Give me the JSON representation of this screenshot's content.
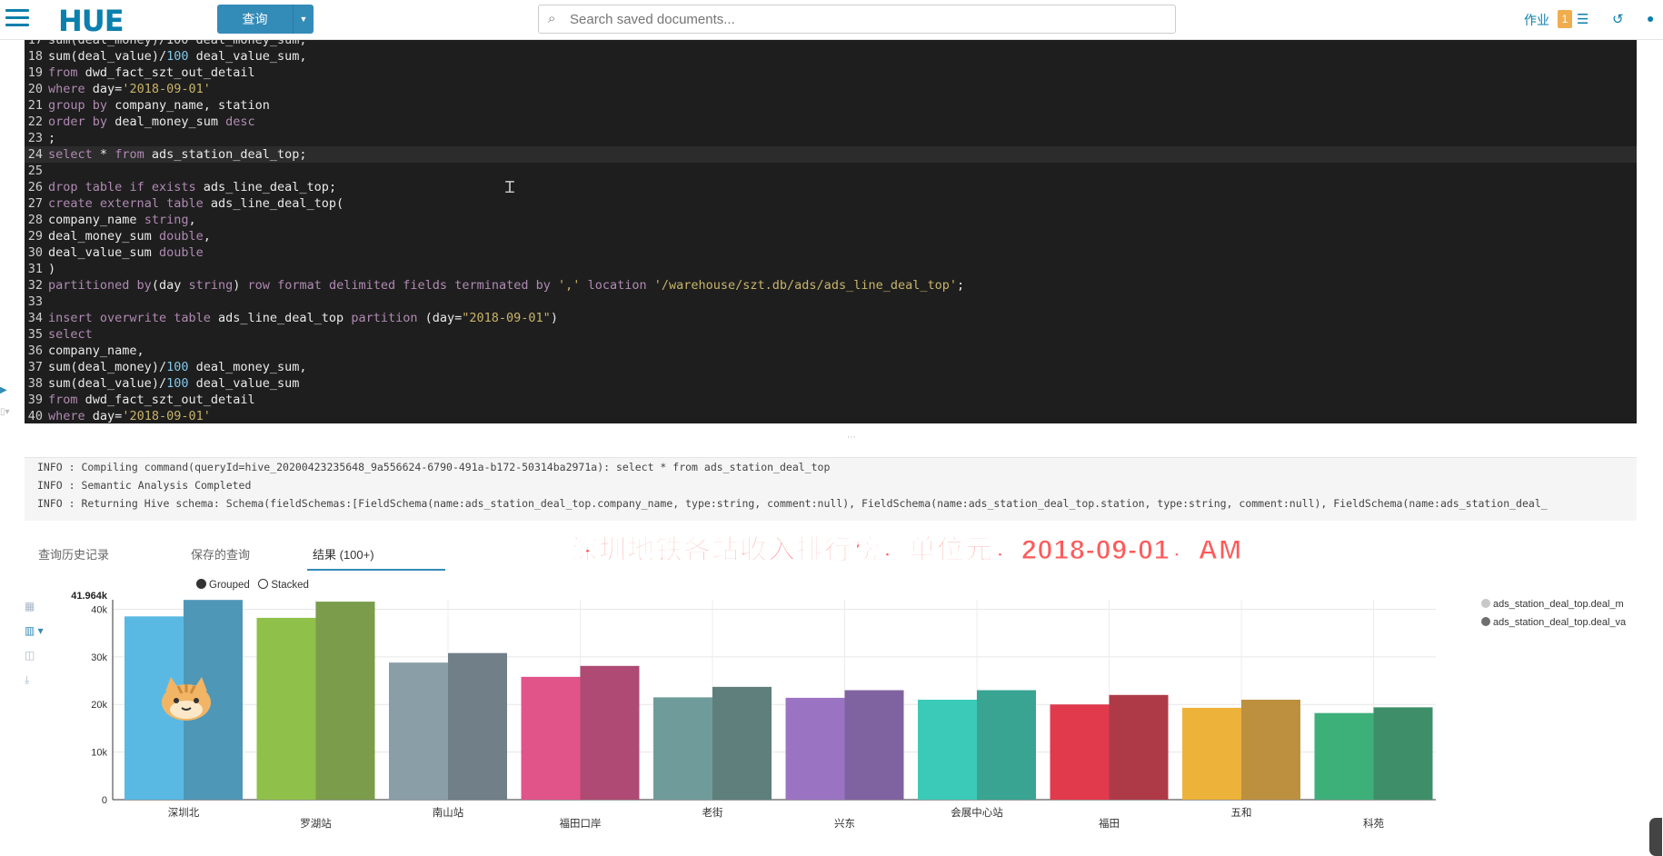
{
  "app": {
    "logo": "HUE",
    "query_button": "查询",
    "search_placeholder": "Search saved documents...",
    "jobs_label": "作业",
    "jobs_count": "1"
  },
  "editor": {
    "lines": [
      {
        "n": "18",
        "text": "sum(deal_value)/100 deal_value_sum,"
      },
      {
        "n": "19",
        "text": "from dwd_fact_szt_out_detail"
      },
      {
        "n": "20",
        "text": "where day='2018-09-01'"
      },
      {
        "n": "21",
        "text": "group by company_name, station"
      },
      {
        "n": "22",
        "text": "order by deal_money_sum desc"
      },
      {
        "n": "23",
        "text": ";"
      },
      {
        "n": "24",
        "text": "select * from ads_station_deal_top;"
      },
      {
        "n": "25",
        "text": ""
      },
      {
        "n": "26",
        "text": "drop table if exists ads_line_deal_top;"
      },
      {
        "n": "27",
        "text": "create external table ads_line_deal_top("
      },
      {
        "n": "28",
        "text": "company_name string,"
      },
      {
        "n": "29",
        "text": "deal_money_sum double,"
      },
      {
        "n": "30",
        "text": "deal_value_sum double"
      },
      {
        "n": "31",
        "text": ")"
      },
      {
        "n": "32",
        "text": "partitioned by(day string) row format delimited fields terminated by ',' location '/warehouse/szt.db/ads/ads_line_deal_top';"
      },
      {
        "n": "33",
        "text": ""
      },
      {
        "n": "34",
        "text": "insert overwrite table ads_line_deal_top partition (day=\"2018-09-01\")"
      },
      {
        "n": "35",
        "text": "select"
      },
      {
        "n": "36",
        "text": "company_name,"
      },
      {
        "n": "37",
        "text": "sum(deal_money)/100 deal_money_sum,"
      },
      {
        "n": "38",
        "text": "sum(deal_value)/100 deal_value_sum"
      },
      {
        "n": "39",
        "text": "from dwd_fact_szt_out_detail"
      },
      {
        "n": "40",
        "text": "where day='2018-09-01'"
      }
    ],
    "top_partial": "sum(deal_money)/100 deal_money_sum,"
  },
  "logs": [
    "INFO  : Compiling command(queryId=hive_20200423235648_9a556624-6790-491a-b172-50314ba2971a): select * from ads_station_deal_top",
    "INFO  : Semantic Analysis Completed",
    "INFO  : Returning Hive schema: Schema(fieldSchemas:[FieldSchema(name:ads_station_deal_top.company_name, type:string, comment:null), FieldSchema(name:ads_station_deal_top.station, type:string, comment:null), FieldSchema(name:ads_station_deal_"
  ],
  "tabs": {
    "history": "查询历史记录",
    "saved": "保存的查询",
    "results": "结果 (100+)"
  },
  "overlay_title": "深圳地铁各站收入排行榜，单位元，2018-09-01，AM",
  "chart_controls": {
    "grouped": "Grouped",
    "stacked": "Stacked"
  },
  "chart_data": {
    "type": "bar",
    "categories": [
      "深圳北",
      "罗湖站",
      "南山站",
      "福田口岸",
      "老街",
      "兴东",
      "会展中心站",
      "福田",
      "五和",
      "科苑"
    ],
    "series": [
      {
        "name": "ads_station_deal_top.deal_m",
        "values": [
          38500,
          38200,
          28800,
          25800,
          21500,
          21400,
          21000,
          20000,
          19300,
          18200
        ]
      },
      {
        "name": "ads_station_deal_top.deal_va",
        "values": [
          41964,
          41600,
          30800,
          28100,
          23700,
          23000,
          23000,
          22000,
          21000,
          19400
        ]
      }
    ],
    "y_ticks": [
      "0",
      "10k",
      "20k",
      "30k",
      "40k"
    ],
    "ylim": [
      0,
      42000
    ],
    "max_label": "41.964k",
    "colors": [
      [
        "#5ab9e3",
        "#4f97b7"
      ],
      [
        "#8ec04a",
        "#7a9c4b"
      ],
      [
        "#8a9ea8",
        "#707f88"
      ],
      [
        "#e0548a",
        "#ae4a73"
      ],
      [
        "#6f9c9a",
        "#5e7f7c"
      ],
      [
        "#9b73c3",
        "#7f63a0"
      ],
      [
        "#3ccab8",
        "#3aa493"
      ],
      [
        "#e03a4c",
        "#ae3a48"
      ],
      [
        "#edb23a",
        "#bd9040"
      ],
      [
        "#3db07a",
        "#3e8f69"
      ]
    ],
    "legend_colors": [
      "#c8c8c8",
      "#6e6e6e"
    ]
  }
}
